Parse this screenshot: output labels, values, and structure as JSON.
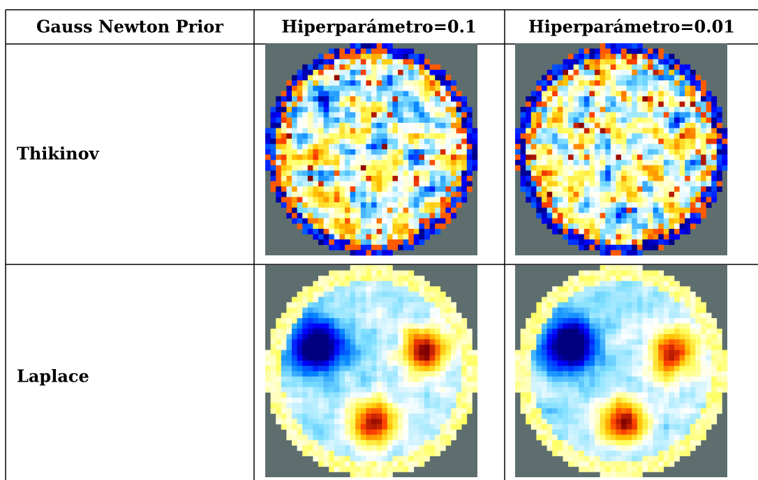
{
  "table": {
    "header": [
      "Gauss Newton Prior",
      "Hiperparámetro=0.1",
      "Hiperparámetro=0.01"
    ],
    "rows": [
      [
        "Thikinov"
      ],
      [
        "Laplace"
      ]
    ]
  }
}
